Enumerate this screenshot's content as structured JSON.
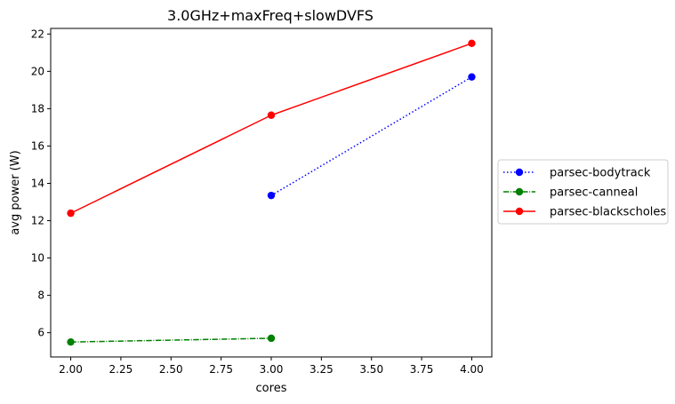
{
  "chart_data": {
    "type": "line",
    "title": "3.0GHz+maxFreq+slowDVFS",
    "xlabel": "cores",
    "ylabel": "avg power (W)",
    "xlim": [
      1.9,
      4.1
    ],
    "ylim": [
      4.7,
      22.3
    ],
    "xticks": [
      "2.00",
      "2.25",
      "2.50",
      "2.75",
      "3.00",
      "3.25",
      "3.50",
      "3.75",
      "4.00"
    ],
    "yticks": [
      "6",
      "8",
      "10",
      "12",
      "14",
      "16",
      "18",
      "20",
      "22"
    ],
    "grid": false,
    "legend_position": "right, outside plot",
    "series": [
      {
        "name": "parsec-bodytrack",
        "color": "#0000ff",
        "linestyle": "dotted",
        "marker": "circle",
        "x": [
          3,
          4
        ],
        "y": [
          13.35,
          19.7
        ]
      },
      {
        "name": "parsec-canneal",
        "color": "#008000",
        "linestyle": "dashdot",
        "marker": "circle",
        "x": [
          2,
          3
        ],
        "y": [
          5.5,
          5.7
        ]
      },
      {
        "name": "parsec-blackscholes",
        "color": "#ff0000",
        "linestyle": "solid",
        "marker": "circle",
        "x": [
          2,
          3,
          4
        ],
        "y": [
          12.4,
          17.65,
          21.5
        ]
      }
    ]
  }
}
